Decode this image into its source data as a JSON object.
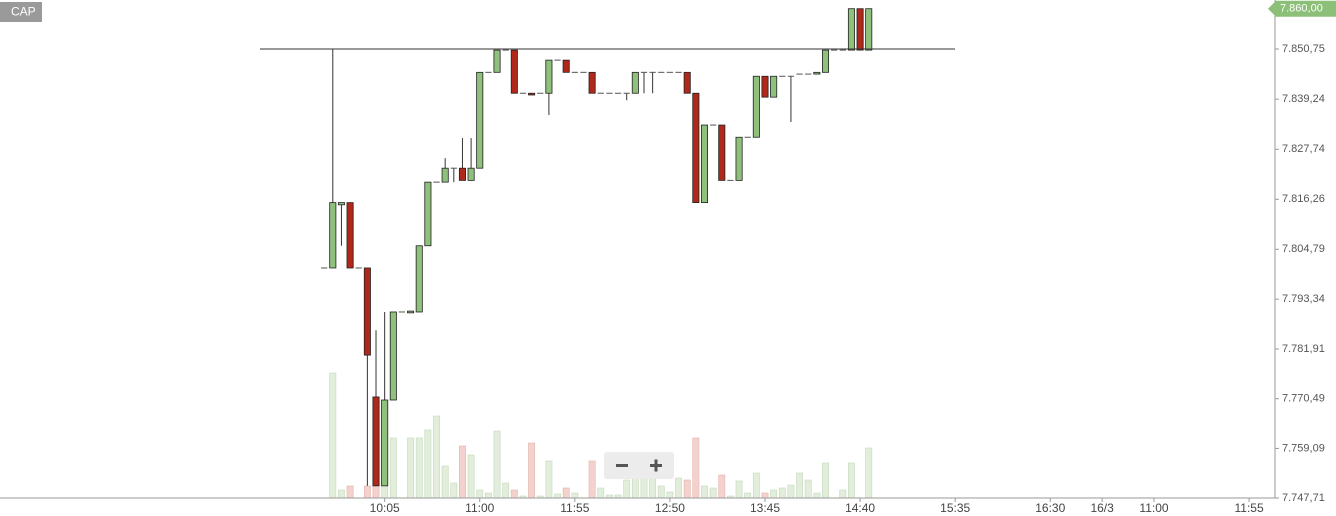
{
  "instrument": "CAP",
  "chart_data": {
    "type": "candlestick",
    "x": [
      0,
      1,
      2,
      3,
      4,
      5,
      6,
      7,
      8,
      9,
      10,
      11,
      12,
      13,
      14,
      15,
      16,
      17,
      18,
      19,
      20,
      21,
      22,
      23,
      24,
      25,
      26,
      27,
      28,
      29,
      30,
      31,
      32,
      33,
      34,
      35,
      36,
      37,
      38,
      39,
      40,
      41,
      42,
      43,
      44,
      45,
      46,
      47,
      48,
      49,
      50,
      51,
      52,
      53,
      54,
      55,
      56,
      57,
      58,
      59,
      60,
      61,
      62,
      63
    ],
    "open": [
      7800.5,
      7800.5,
      7815.0,
      7815.5,
      7800.5,
      7800.5,
      7770.9,
      7750.5,
      7770.2,
      7790.4,
      7790.2,
      7790.4,
      7805.6,
      7820.2,
      7820.2,
      7823.4,
      7823.4,
      7820.6,
      7823.4,
      7845.4,
      7845.4,
      7850.5,
      7850.5,
      7840.6,
      7840.6,
      7840.6,
      7840.6,
      7848.2,
      7848.2,
      7845.4,
      7845.4,
      7845.4,
      7840.6,
      7840.6,
      7840.6,
      7840.6,
      7840.6,
      7845.4,
      7845.4,
      7845.4,
      7845.4,
      7845.4,
      7845.4,
      7840.6,
      7815.5,
      7833.3,
      7833.3,
      7820.6,
      7820.6,
      7830.5,
      7830.5,
      7844.5,
      7839.7,
      7844.5,
      7844.5,
      7845.0,
      7845.0,
      7845.0,
      7845.4,
      7850.5,
      7850.5,
      7850.5,
      7860.0,
      7850.5
    ],
    "high": [
      7800.5,
      7850.75,
      7815.5,
      7815.5,
      7800.5,
      7800.5,
      7786.2,
      7790.4,
      7790.4,
      7790.4,
      7790.6,
      7805.6,
      7820.2,
      7820.2,
      7825.7,
      7823.4,
      7830.3,
      7830.3,
      7845.4,
      7845.4,
      7850.5,
      7850.5,
      7850.5,
      7840.6,
      7840.6,
      7840.6,
      7848.2,
      7848.2,
      7848.2,
      7845.4,
      7845.4,
      7845.4,
      7840.6,
      7840.6,
      7840.6,
      7840.6,
      7845.4,
      7845.4,
      7845.4,
      7845.4,
      7845.4,
      7845.4,
      7845.4,
      7840.6,
      7833.3,
      7833.3,
      7833.3,
      7820.6,
      7830.5,
      7830.5,
      7844.5,
      7844.5,
      7844.5,
      7844.5,
      7844.5,
      7845.0,
      7845.0,
      7845.4,
      7850.5,
      7850.5,
      7850.5,
      7860.0,
      7860.0,
      7860.0
    ],
    "low": [
      7800.5,
      7800.5,
      7805.6,
      7800.5,
      7800.5,
      7750.5,
      7750.5,
      7750.5,
      7770.2,
      7790.4,
      7790.2,
      7790.4,
      7805.6,
      7820.2,
      7820.2,
      7820.2,
      7820.6,
      7820.6,
      7823.4,
      7845.4,
      7845.4,
      7850.5,
      7840.6,
      7840.6,
      7840.2,
      7840.6,
      7835.6,
      7848.2,
      7845.4,
      7845.4,
      7845.4,
      7840.6,
      7840.6,
      7840.6,
      7840.6,
      7839.0,
      7840.6,
      7840.6,
      7840.6,
      7845.4,
      7845.4,
      7845.4,
      7840.6,
      7815.5,
      7815.5,
      7833.3,
      7820.6,
      7820.6,
      7820.6,
      7830.5,
      7830.5,
      7839.7,
      7839.7,
      7844.5,
      7834.0,
      7845.0,
      7845.0,
      7845.0,
      7845.4,
      7850.5,
      7850.5,
      7850.5,
      7850.5,
      7850.5
    ],
    "close": [
      7800.5,
      7815.5,
      7815.5,
      7800.5,
      7800.5,
      7780.5,
      7750.5,
      7770.2,
      7790.4,
      7790.4,
      7790.6,
      7805.6,
      7820.2,
      7820.2,
      7823.4,
      7823.4,
      7820.6,
      7823.4,
      7845.4,
      7845.4,
      7850.5,
      7850.5,
      7840.6,
      7840.6,
      7840.2,
      7840.6,
      7848.2,
      7848.2,
      7845.4,
      7845.4,
      7845.4,
      7840.6,
      7840.6,
      7840.6,
      7840.6,
      7840.6,
      7845.4,
      7845.4,
      7845.4,
      7845.4,
      7845.4,
      7845.4,
      7840.6,
      7815.5,
      7833.3,
      7833.3,
      7820.6,
      7820.6,
      7830.5,
      7830.5,
      7844.5,
      7839.7,
      7844.5,
      7844.5,
      7844.5,
      7845.0,
      7845.0,
      7845.4,
      7850.5,
      7850.5,
      7850.5,
      7860.0,
      7850.5,
      7860.0
    ],
    "volume": [
      0,
      125,
      8,
      12,
      0,
      12,
      57,
      52,
      60,
      0,
      60,
      60,
      68,
      82,
      32,
      15,
      52,
      43,
      8,
      5,
      67,
      15,
      8,
      2,
      55,
      2,
      37,
      4,
      10,
      5,
      0,
      37,
      10,
      3,
      3,
      18,
      37,
      28,
      38,
      12,
      6,
      20,
      18,
      60,
      12,
      10,
      23,
      2,
      17,
      5,
      25,
      5,
      8,
      10,
      13,
      25,
      18,
      5,
      35,
      0,
      8,
      35,
      0,
      50
    ],
    "up_color": "#8fc07c",
    "down_color": "#b0281a",
    "volume_up_color": "#e2eedb",
    "volume_down_color": "#f3d2cd",
    "volume_ylim": [
      0,
      500
    ],
    "reference_line": 7850.75,
    "last_price": {
      "value": 7860.0,
      "label": "7.860,00"
    },
    "xlim": [
      -37.5,
      110
    ],
    "xticks": [
      {
        "value": 7,
        "label": "10:05"
      },
      {
        "value": 18,
        "label": "11:00"
      },
      {
        "value": 29,
        "label": "11:55"
      },
      {
        "value": 40,
        "label": "12:50"
      },
      {
        "value": 51,
        "label": "13:45"
      },
      {
        "value": 62,
        "label": "14:40"
      },
      {
        "value": 73,
        "label": "15:35"
      },
      {
        "value": 84,
        "label": "16:30"
      },
      {
        "value": 90,
        "label": "16/3"
      },
      {
        "value": 96,
        "label": "11:00"
      },
      {
        "value": 107,
        "label": "11:55"
      }
    ],
    "ylim": [
      7747.25,
      7862.0
    ],
    "yticks": [
      {
        "value": 7850.75,
        "label": "7.850,75"
      },
      {
        "value": 7839.24,
        "label": "7.839,24"
      },
      {
        "value": 7827.74,
        "label": "7.827,74"
      },
      {
        "value": 7816.26,
        "label": "7.816,26"
      },
      {
        "value": 7804.79,
        "label": "7.804,79"
      },
      {
        "value": 7793.34,
        "label": "7.793,34"
      },
      {
        "value": 7781.91,
        "label": "7.781,91"
      },
      {
        "value": 7770.49,
        "label": "7.770,49"
      },
      {
        "value": 7759.09,
        "label": "7.759,09"
      },
      {
        "value": 7747.71,
        "label": "7.747,71"
      }
    ]
  }
}
